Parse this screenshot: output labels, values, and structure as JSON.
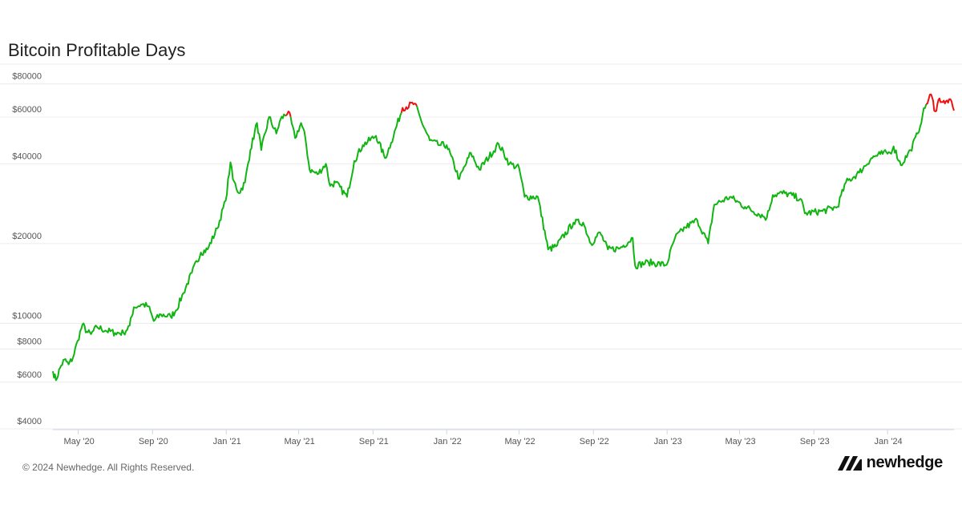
{
  "header": {
    "title": "Bitcoin Profitable Days"
  },
  "footer": {
    "copyright": "© 2024 Newhedge. All Rights Reserved.",
    "brand": "newhedge"
  },
  "colors": {
    "profitable": "#11b511",
    "unprofitable": "#ee1111",
    "grid": "#ececec",
    "axis": "#cfd7e3"
  },
  "chart_data": {
    "type": "line",
    "title": "Bitcoin Profitable Days",
    "yscale": "log",
    "ylim": [
      4000,
      95000
    ],
    "xlim": [
      "2020-03-20",
      "2024-04-20"
    ],
    "grid": true,
    "y_ticks": [
      {
        "value": 4000,
        "label": "$4000"
      },
      {
        "value": 6000,
        "label": "$6000"
      },
      {
        "value": 8000,
        "label": "$8000"
      },
      {
        "value": 10000,
        "label": "$10000"
      },
      {
        "value": 20000,
        "label": "$20000"
      },
      {
        "value": 40000,
        "label": "$40000"
      },
      {
        "value": 60000,
        "label": "$60000"
      },
      {
        "value": 80000,
        "label": "$80000"
      }
    ],
    "x_ticks": [
      {
        "value": "2020-05-01",
        "label": "May '20"
      },
      {
        "value": "2020-09-01",
        "label": "Sep '20"
      },
      {
        "value": "2021-01-01",
        "label": "Jan '21"
      },
      {
        "value": "2021-05-01",
        "label": "May '21"
      },
      {
        "value": "2021-09-01",
        "label": "Sep '21"
      },
      {
        "value": "2022-01-01",
        "label": "Jan '22"
      },
      {
        "value": "2022-05-01",
        "label": "May '22"
      },
      {
        "value": "2022-09-01",
        "label": "Sep '22"
      },
      {
        "value": "2023-01-01",
        "label": "Jan '23"
      },
      {
        "value": "2023-05-01",
        "label": "May '23"
      },
      {
        "value": "2023-09-01",
        "label": "Sep '23"
      },
      {
        "value": "2024-01-01",
        "label": "Jan '24"
      }
    ],
    "series": [
      {
        "points": [
          [
            "2020-03-20",
            6600
          ],
          [
            "2020-03-25",
            6100
          ],
          [
            "2020-04-01",
            6800
          ],
          [
            "2020-04-08",
            7300
          ],
          [
            "2020-04-15",
            7000
          ],
          [
            "2020-04-22",
            7400
          ],
          [
            "2020-04-30",
            8600
          ],
          [
            "2020-05-08",
            9900
          ],
          [
            "2020-05-15",
            9300
          ],
          [
            "2020-05-22",
            9100
          ],
          [
            "2020-06-01",
            9700
          ],
          [
            "2020-06-15",
            9400
          ],
          [
            "2020-07-01",
            9200
          ],
          [
            "2020-07-15",
            9200
          ],
          [
            "2020-07-25",
            9800
          ],
          [
            "2020-08-01",
            11500
          ],
          [
            "2020-08-15",
            11800
          ],
          [
            "2020-08-25",
            11600
          ],
          [
            "2020-09-03",
            10200
          ],
          [
            "2020-09-15",
            10800
          ],
          [
            "2020-10-01",
            10600
          ],
          [
            "2020-10-10",
            11200
          ],
          [
            "2020-10-22",
            13000
          ],
          [
            "2020-11-05",
            15500
          ],
          [
            "2020-11-20",
            18500
          ],
          [
            "2020-12-01",
            19000
          ],
          [
            "2020-12-17",
            22800
          ],
          [
            "2020-12-31",
            29000
          ],
          [
            "2021-01-08",
            40500
          ],
          [
            "2021-01-12",
            35000
          ],
          [
            "2021-01-22",
            31000
          ],
          [
            "2021-02-01",
            34000
          ],
          [
            "2021-02-10",
            45000
          ],
          [
            "2021-02-21",
            57000
          ],
          [
            "2021-02-28",
            45000
          ],
          [
            "2021-03-13",
            60000
          ],
          [
            "2021-03-25",
            52000
          ],
          [
            "2021-04-01",
            58800
          ],
          [
            "2021-04-14",
            63000
          ],
          [
            "2021-04-25",
            50000
          ],
          [
            "2021-05-05",
            57000
          ],
          [
            "2021-05-12",
            50000
          ],
          [
            "2021-05-19",
            38000
          ],
          [
            "2021-06-01",
            36500
          ],
          [
            "2021-06-15",
            40000
          ],
          [
            "2021-06-22",
            33000
          ],
          [
            "2021-07-01",
            34000
          ],
          [
            "2021-07-20",
            30000
          ],
          [
            "2021-08-01",
            41000
          ],
          [
            "2021-08-15",
            47000
          ],
          [
            "2021-09-06",
            51000
          ],
          [
            "2021-09-21",
            42000
          ],
          [
            "2021-10-01",
            48000
          ],
          [
            "2021-10-20",
            65000
          ],
          [
            "2021-11-09",
            67500
          ],
          [
            "2021-11-20",
            58000
          ],
          [
            "2021-12-04",
            49000
          ],
          [
            "2021-12-20",
            47000
          ],
          [
            "2022-01-01",
            47000
          ],
          [
            "2022-01-22",
            35000
          ],
          [
            "2022-02-10",
            44000
          ],
          [
            "2022-02-24",
            38000
          ],
          [
            "2022-03-28",
            47500
          ],
          [
            "2022-04-15",
            40000
          ],
          [
            "2022-05-01",
            38500
          ],
          [
            "2022-05-10",
            30000
          ],
          [
            "2022-06-01",
            30000
          ],
          [
            "2022-06-18",
            19000
          ],
          [
            "2022-07-01",
            19500
          ],
          [
            "2022-07-30",
            24000
          ],
          [
            "2022-08-15",
            24000
          ],
          [
            "2022-08-28",
            20000
          ],
          [
            "2022-09-12",
            22000
          ],
          [
            "2022-09-25",
            19000
          ],
          [
            "2022-10-15",
            19200
          ],
          [
            "2022-11-05",
            21000
          ],
          [
            "2022-11-09",
            16500
          ],
          [
            "2022-12-01",
            17000
          ],
          [
            "2022-12-31",
            16600
          ],
          [
            "2023-01-14",
            21000
          ],
          [
            "2023-01-31",
            23000
          ],
          [
            "2023-02-20",
            24500
          ],
          [
            "2023-03-10",
            20000
          ],
          [
            "2023-03-20",
            28000
          ],
          [
            "2023-04-15",
            30000
          ],
          [
            "2023-05-10",
            27500
          ],
          [
            "2023-06-15",
            25000
          ],
          [
            "2023-06-25",
            30500
          ],
          [
            "2023-07-15",
            31000
          ],
          [
            "2023-08-10",
            29500
          ],
          [
            "2023-08-17",
            26000
          ],
          [
            "2023-09-15",
            26500
          ],
          [
            "2023-10-10",
            27500
          ],
          [
            "2023-10-24",
            34000
          ],
          [
            "2023-11-15",
            37000
          ],
          [
            "2023-12-05",
            42000
          ],
          [
            "2023-12-20",
            43500
          ],
          [
            "2024-01-05",
            44000
          ],
          [
            "2024-01-11",
            46500
          ],
          [
            "2024-01-23",
            39500
          ],
          [
            "2024-02-08",
            45000
          ],
          [
            "2024-02-20",
            52000
          ],
          [
            "2024-02-28",
            61000
          ],
          [
            "2024-03-05",
            67000
          ],
          [
            "2024-03-13",
            73000
          ],
          [
            "2024-03-20",
            63000
          ],
          [
            "2024-03-27",
            70500
          ],
          [
            "2024-04-05",
            67500
          ],
          [
            "2024-04-12",
            70000
          ],
          [
            "2024-04-20",
            63500
          ]
        ]
      }
    ],
    "unprofitable_ranges": [
      [
        "2021-04-10",
        "2021-04-16"
      ],
      [
        "2021-10-18",
        "2021-11-12"
      ],
      [
        "2024-03-05",
        "2024-04-20"
      ]
    ]
  }
}
